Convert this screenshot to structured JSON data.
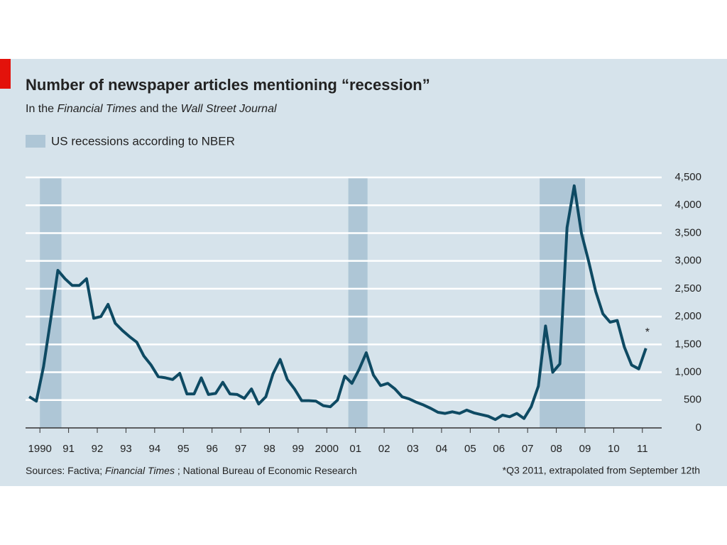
{
  "chart_data": {
    "type": "line",
    "title": "Number of newspaper articles mentioning “recession”",
    "subtitle": [
      "In the ",
      "Financial Times",
      " and the ",
      "Wall Street Journal"
    ],
    "recession_label": "US recessions according to NBER",
    "recession_color": "#aec6d6",
    "recessions": [
      [
        1990.5,
        1991.25
      ],
      [
        2001.25,
        2001.92
      ],
      [
        2007.92,
        2009.5
      ]
    ],
    "x": [
      1990.125,
      1990.375,
      1990.625,
      1990.875,
      1991.125,
      1991.375,
      1991.625,
      1991.875,
      1992.125,
      1992.375,
      1992.625,
      1992.875,
      1993.125,
      1993.375,
      1993.625,
      1993.875,
      1994.125,
      1994.375,
      1994.625,
      1994.875,
      1995.125,
      1995.375,
      1995.625,
      1995.875,
      1996.125,
      1996.375,
      1996.625,
      1996.875,
      1997.125,
      1997.375,
      1997.625,
      1997.875,
      1998.125,
      1998.375,
      1998.625,
      1998.875,
      1999.125,
      1999.375,
      1999.625,
      1999.875,
      2000.125,
      2000.375,
      2000.625,
      2000.875,
      2001.125,
      2001.375,
      2001.625,
      2001.875,
      2002.125,
      2002.375,
      2002.625,
      2002.875,
      2003.125,
      2003.375,
      2003.625,
      2003.875,
      2004.125,
      2004.375,
      2004.625,
      2004.875,
      2005.125,
      2005.375,
      2005.625,
      2005.875,
      2006.125,
      2006.375,
      2006.625,
      2006.875,
      2007.125,
      2007.375,
      2007.625,
      2007.875,
      2008.125,
      2008.375,
      2008.625,
      2008.875,
      2009.125,
      2009.375,
      2009.625,
      2009.875,
      2010.125,
      2010.375,
      2010.625,
      2010.875,
      2011.125,
      2011.375,
      2011.625
    ],
    "values": [
      560,
      480,
      1100,
      1950,
      2830,
      2680,
      2560,
      2560,
      2680,
      1970,
      2000,
      2220,
      1880,
      1750,
      1640,
      1540,
      1290,
      1130,
      920,
      900,
      870,
      980,
      610,
      610,
      900,
      600,
      620,
      820,
      610,
      600,
      530,
      700,
      430,
      560,
      970,
      1230,
      870,
      700,
      490,
      490,
      480,
      400,
      380,
      500,
      930,
      800,
      1050,
      1350,
      950,
      760,
      800,
      700,
      560,
      520,
      460,
      410,
      350,
      280,
      260,
      290,
      260,
      320,
      270,
      240,
      210,
      150,
      230,
      200,
      260,
      170,
      380,
      750,
      1830,
      1000,
      1150,
      3600,
      4350,
      3500,
      3000,
      2450,
      2050,
      1900,
      1930,
      1450,
      1130,
      1060,
      1430
    ],
    "color": "#0e4a63",
    "xlim": [
      1990,
      2012
    ],
    "ylim": [
      0,
      4500
    ],
    "yticks": [
      0,
      500,
      {
        "value": 1000,
        "label": "1,000"
      },
      {
        "value": 1500,
        "label": "1,500"
      },
      {
        "value": 2000,
        "label": "2,000"
      },
      {
        "value": 2500,
        "label": "2,500"
      },
      {
        "value": 3000,
        "label": "3,000"
      },
      {
        "value": 3500,
        "label": "3,500"
      },
      {
        "value": 4000,
        "label": "4,000"
      },
      {
        "value": 4500,
        "label": "4,500"
      }
    ],
    "xticks": [
      {
        "value": 1990.5,
        "label": "1990"
      },
      {
        "value": 1991.5,
        "label": "91"
      },
      {
        "value": 1992.5,
        "label": "92"
      },
      {
        "value": 1993.5,
        "label": "93"
      },
      {
        "value": 1994.5,
        "label": "94"
      },
      {
        "value": 1995.5,
        "label": "95"
      },
      {
        "value": 1996.5,
        "label": "96"
      },
      {
        "value": 1997.5,
        "label": "97"
      },
      {
        "value": 1998.5,
        "label": "98"
      },
      {
        "value": 1999.5,
        "label": "99"
      },
      {
        "value": 2000.5,
        "label": "2000"
      },
      {
        "value": 2001.5,
        "label": "01"
      },
      {
        "value": 2002.5,
        "label": "02"
      },
      {
        "value": 2003.5,
        "label": "03"
      },
      {
        "value": 2004.5,
        "label": "04"
      },
      {
        "value": 2005.5,
        "label": "05"
      },
      {
        "value": 2006.5,
        "label": "06"
      },
      {
        "value": 2007.5,
        "label": "07"
      },
      {
        "value": 2008.5,
        "label": "08"
      },
      {
        "value": 2009.5,
        "label": "09"
      },
      {
        "value": 2010.5,
        "label": "10"
      },
      {
        "value": 2011.5,
        "label": "11"
      }
    ],
    "grid": true,
    "annotation": "*",
    "sources": [
      "Sources: Factiva; ",
      "Financial Times",
      " ; National Bureau of Economic Research"
    ],
    "footnote": "*Q3 2011, extrapolated from September 12th"
  }
}
